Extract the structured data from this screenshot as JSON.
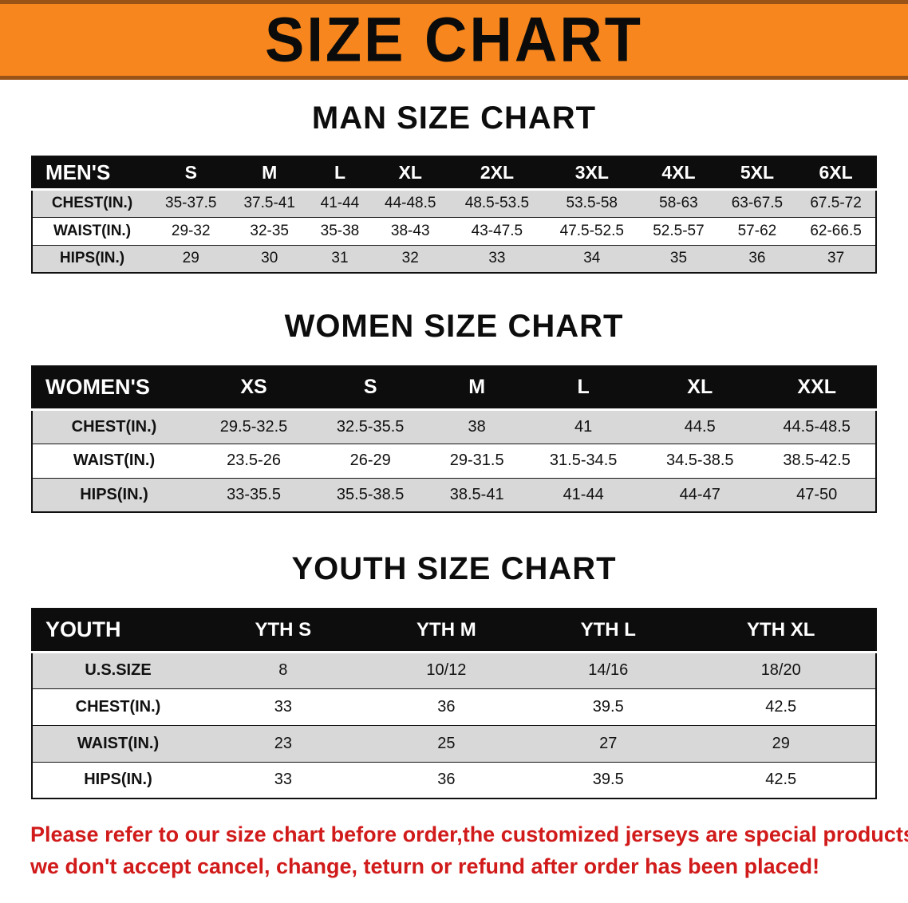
{
  "banner": {
    "title": "SIZE CHART"
  },
  "colors": {
    "banner-bg": "#F6861D",
    "banner-edge": "#9A5316",
    "table-header-bg": "#0D0D0D",
    "row-stripe": "#D8D8D8",
    "text": "#111111",
    "disclaimer-red": "#D11B1B"
  },
  "sections": [
    {
      "id": "men",
      "heading": "MAN SIZE CHART",
      "table": {
        "header": [
          "MEN'S",
          "S",
          "M",
          "L",
          "XL",
          "2XL",
          "3XL",
          "4XL",
          "5XL",
          "6XL"
        ],
        "rows": [
          [
            "CHEST(IN.)",
            "35-37.5",
            "37.5-41",
            "41-44",
            "44-48.5",
            "48.5-53.5",
            "53.5-58",
            "58-63",
            "63-67.5",
            "67.5-72"
          ],
          [
            "WAIST(IN.)",
            "29-32",
            "32-35",
            "35-38",
            "38-43",
            "43-47.5",
            "47.5-52.5",
            "52.5-57",
            "57-62",
            "62-66.5"
          ],
          [
            "HIPS(IN.)",
            "29",
            "30",
            "31",
            "32",
            "33",
            "34",
            "35",
            "36",
            "37"
          ]
        ]
      }
    },
    {
      "id": "women",
      "heading": "WOMEN SIZE CHART",
      "table": {
        "header": [
          "WOMEN'S",
          "XS",
          "S",
          "M",
          "L",
          "XL",
          "XXL"
        ],
        "rows": [
          [
            "CHEST(IN.)",
            "29.5-32.5",
            "32.5-35.5",
            "38",
            "41",
            "44.5",
            "44.5-48.5"
          ],
          [
            "WAIST(IN.)",
            "23.5-26",
            "26-29",
            "29-31.5",
            "31.5-34.5",
            "34.5-38.5",
            "38.5-42.5"
          ],
          [
            "HIPS(IN.)",
            "33-35.5",
            "35.5-38.5",
            "38.5-41",
            "41-44",
            "44-47",
            "47-50"
          ]
        ]
      }
    },
    {
      "id": "youth",
      "heading": "YOUTH SIZE CHART",
      "table": {
        "header": [
          "YOUTH",
          "YTH S",
          "YTH M",
          "YTH L",
          "YTH XL"
        ],
        "rows": [
          [
            "U.S.SIZE",
            "8",
            "10/12",
            "14/16",
            "18/20"
          ],
          [
            "CHEST(IN.)",
            "33",
            "36",
            "39.5",
            "42.5"
          ],
          [
            "WAIST(IN.)",
            "23",
            "25",
            "27",
            "29"
          ],
          [
            "HIPS(IN.)",
            "33",
            "36",
            "39.5",
            "42.5"
          ]
        ]
      }
    }
  ],
  "disclaimer": {
    "line1": "Please refer to our size chart before order,the customized jerseys are special products,",
    "line2": "we don't accept cancel, change, teturn or refund after order has been placed!"
  }
}
